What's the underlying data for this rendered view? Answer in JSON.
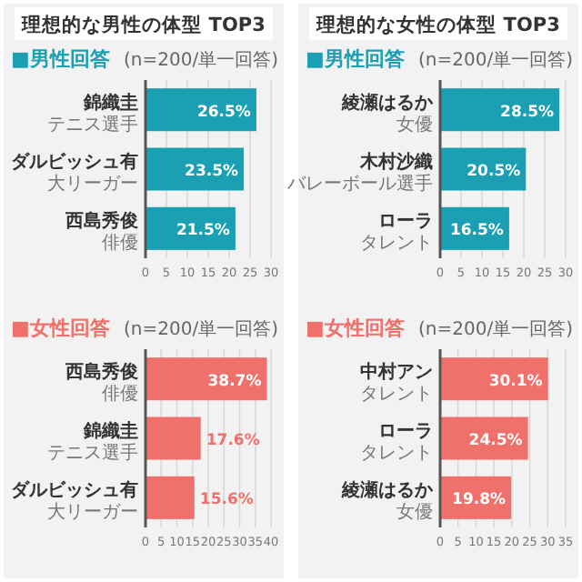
{
  "chart_data": [
    {
      "type": "bar",
      "orientation": "horizontal",
      "title": "理想的な男性の体型 TOP3",
      "subtitle": "■男性回答",
      "annotations": [
        "(n=200/単一回答)",
        "テニス選手",
        "大リーガー",
        "俳優"
      ],
      "categories": [
        "錦織圭",
        "ダルビッシュ有",
        "西島秀俊"
      ],
      "values": [
        26.5,
        23.5,
        21.5
      ],
      "value_labels": [
        "26.5%",
        "23.5%",
        "21.5%"
      ],
      "color": "#1b9fb3",
      "xlim": [
        0,
        30
      ],
      "xticks": [
        0,
        5,
        10,
        15,
        20,
        25,
        30
      ],
      "grid": "x"
    },
    {
      "type": "bar",
      "orientation": "horizontal",
      "subtitle": "■女性回答",
      "annotations": [
        "(n=200/単一回答)",
        "俳優",
        "テニス選手",
        "大リーガー"
      ],
      "categories": [
        "西島秀俊",
        "錦織圭",
        "ダルビッシュ有"
      ],
      "values": [
        38.7,
        17.6,
        15.6
      ],
      "value_labels": [
        "38.7%",
        "17.6%",
        "15.6%"
      ],
      "color": "#f0716b",
      "xlim": [
        0,
        40
      ],
      "xticks": [
        0,
        5,
        10,
        15,
        20,
        25,
        30,
        35,
        40
      ],
      "grid": "x"
    },
    {
      "type": "bar",
      "orientation": "horizontal",
      "title": "理想的な女性の体型 TOP3",
      "subtitle": "■男性回答",
      "annotations": [
        "(n=200/単一回答)",
        "女優",
        "バレーボール選手",
        "タレント"
      ],
      "categories": [
        "綾瀬はるか",
        "木村沙織",
        "ローラ"
      ],
      "values": [
        28.5,
        20.5,
        16.5
      ],
      "value_labels": [
        "28.5%",
        "20.5%",
        "16.5%"
      ],
      "color": "#1b9fb3",
      "xlim": [
        0,
        30
      ],
      "xticks": [
        0,
        5,
        10,
        15,
        20,
        25,
        30
      ],
      "grid": "x"
    },
    {
      "type": "bar",
      "orientation": "horizontal",
      "subtitle": "■女性回答",
      "annotations": [
        "(n=200/単一回答)",
        "タレント",
        "タレント",
        "女優"
      ],
      "categories": [
        "中村アン",
        "ローラ",
        "綾瀬はるか"
      ],
      "values": [
        30.1,
        24.5,
        19.8
      ],
      "value_labels": [
        "30.1%",
        "24.5%",
        "19.8%"
      ],
      "color": "#f0716b",
      "xlim": [
        0,
        35
      ],
      "xticks": [
        0,
        5,
        10,
        15,
        20,
        25,
        30,
        35
      ],
      "grid": "x"
    }
  ]
}
